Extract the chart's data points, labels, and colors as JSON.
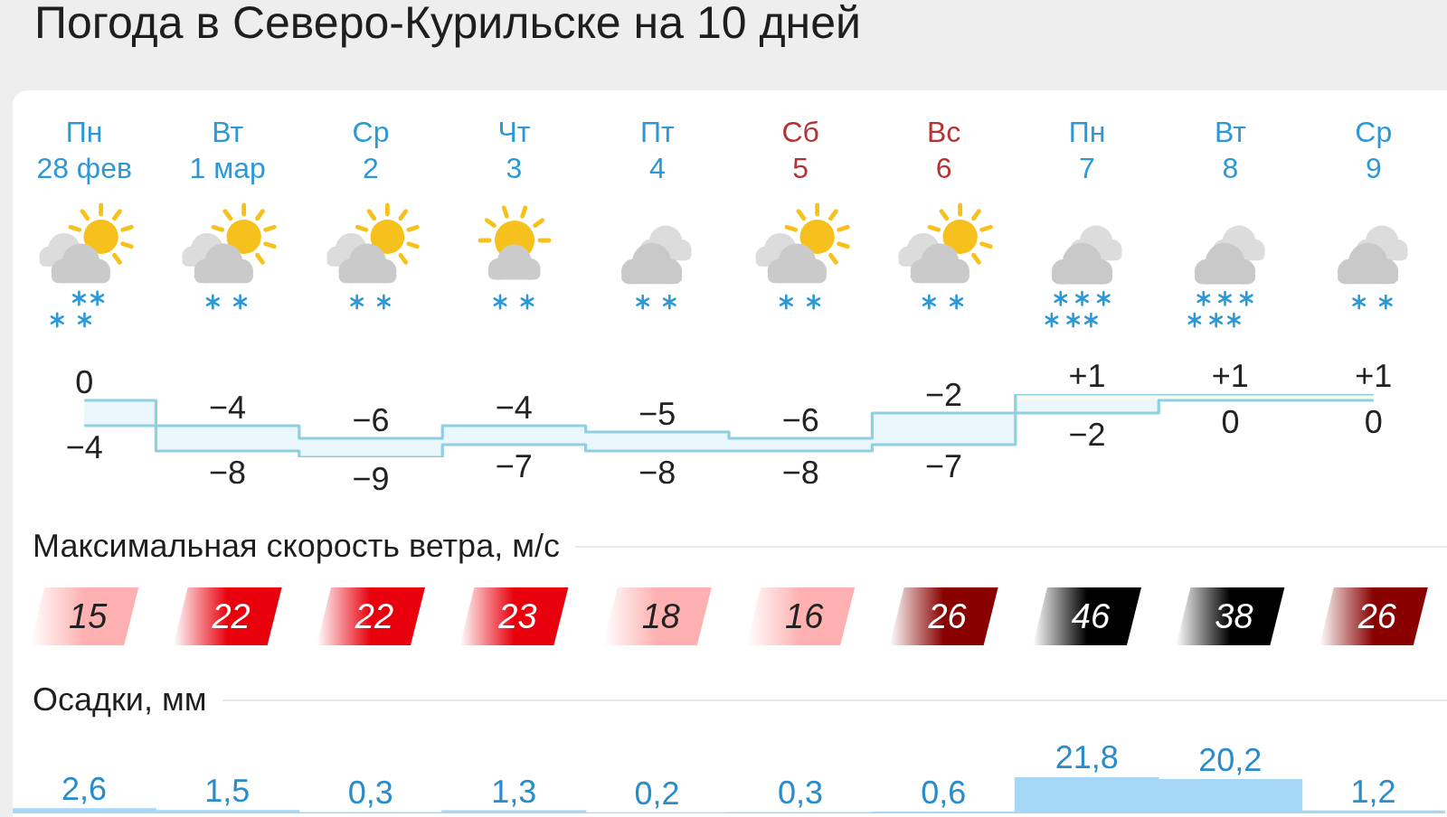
{
  "chart_data": [
    {
      "type": "step",
      "title": "Погода в Северо-Курильске на 10 дней",
      "categories": [
        "Пн\n28 фев",
        "Вт\n1 мар",
        "Ср\n2",
        "Чт\n3",
        "Пт\n4",
        "Сб\n5",
        "Вс\n6",
        "Пн\n7",
        "Вт\n8",
        "Ср\n9"
      ],
      "tick_labels": "x",
      "series": [
        {
          "color": "#8ed0e1",
          "values": [
            0,
            -4,
            -6,
            -4,
            -5,
            -6,
            -2,
            1,
            1,
            1
          ],
          "value_labels": [
            "0",
            "−4",
            "−6",
            "−4",
            "−5",
            "−6",
            "−2",
            "+1",
            "+1",
            "+1"
          ],
          "lower": [
            -4,
            -8,
            -9,
            -7,
            -8,
            -8,
            -7,
            -2,
            0,
            0
          ],
          "upper": [
            0,
            -4,
            -6,
            -4,
            -5,
            -6,
            -2,
            1,
            1,
            1
          ]
        },
        {
          "color": "#8ed0e1",
          "values": [
            -4,
            -8,
            -9,
            -7,
            -8,
            -8,
            -7,
            -2,
            0,
            0
          ],
          "value_labels": [
            "−4",
            "−8",
            "−9",
            "−7",
            "−8",
            "−8",
            "−7",
            "−2",
            "0",
            "0"
          ]
        }
      ]
    },
    {
      "type": "heatmap",
      "title": "Максимальная скорость ветра, м/с",
      "categories": [
        null,
        null,
        null,
        null,
        null,
        null,
        null,
        null,
        null,
        null
      ],
      "y_categories": [
        null
      ],
      "tick_labels": false,
      "cells": [
        [
          15,
          22,
          22,
          23,
          18,
          16,
          26,
          46,
          38,
          26
        ]
      ],
      "colors": [
        "#ffb0b0",
        "#e8000c",
        "#e8000c",
        "#e8000c",
        "#ffb0b0",
        "#ffb0b0",
        "#880000",
        "#000000",
        "#000000",
        "#880000"
      ],
      "data_labels": true
    },
    {
      "type": "bar",
      "title": "Осадки, мм",
      "categories": [
        null,
        null,
        null,
        null,
        null,
        null,
        null,
        null,
        null,
        null
      ],
      "tick_labels": false,
      "values": [
        2.6,
        1.5,
        0.3,
        1.3,
        0.2,
        0.3,
        0.6,
        21.8,
        20.2,
        1.2
      ],
      "value_labels": [
        "2,6",
        "1,5",
        "0,3",
        "1,3",
        "0,2",
        "0,3",
        "0,6",
        "21,8",
        "20,2",
        "1,2"
      ],
      "color": "#a7d7f7"
    }
  ]
}
